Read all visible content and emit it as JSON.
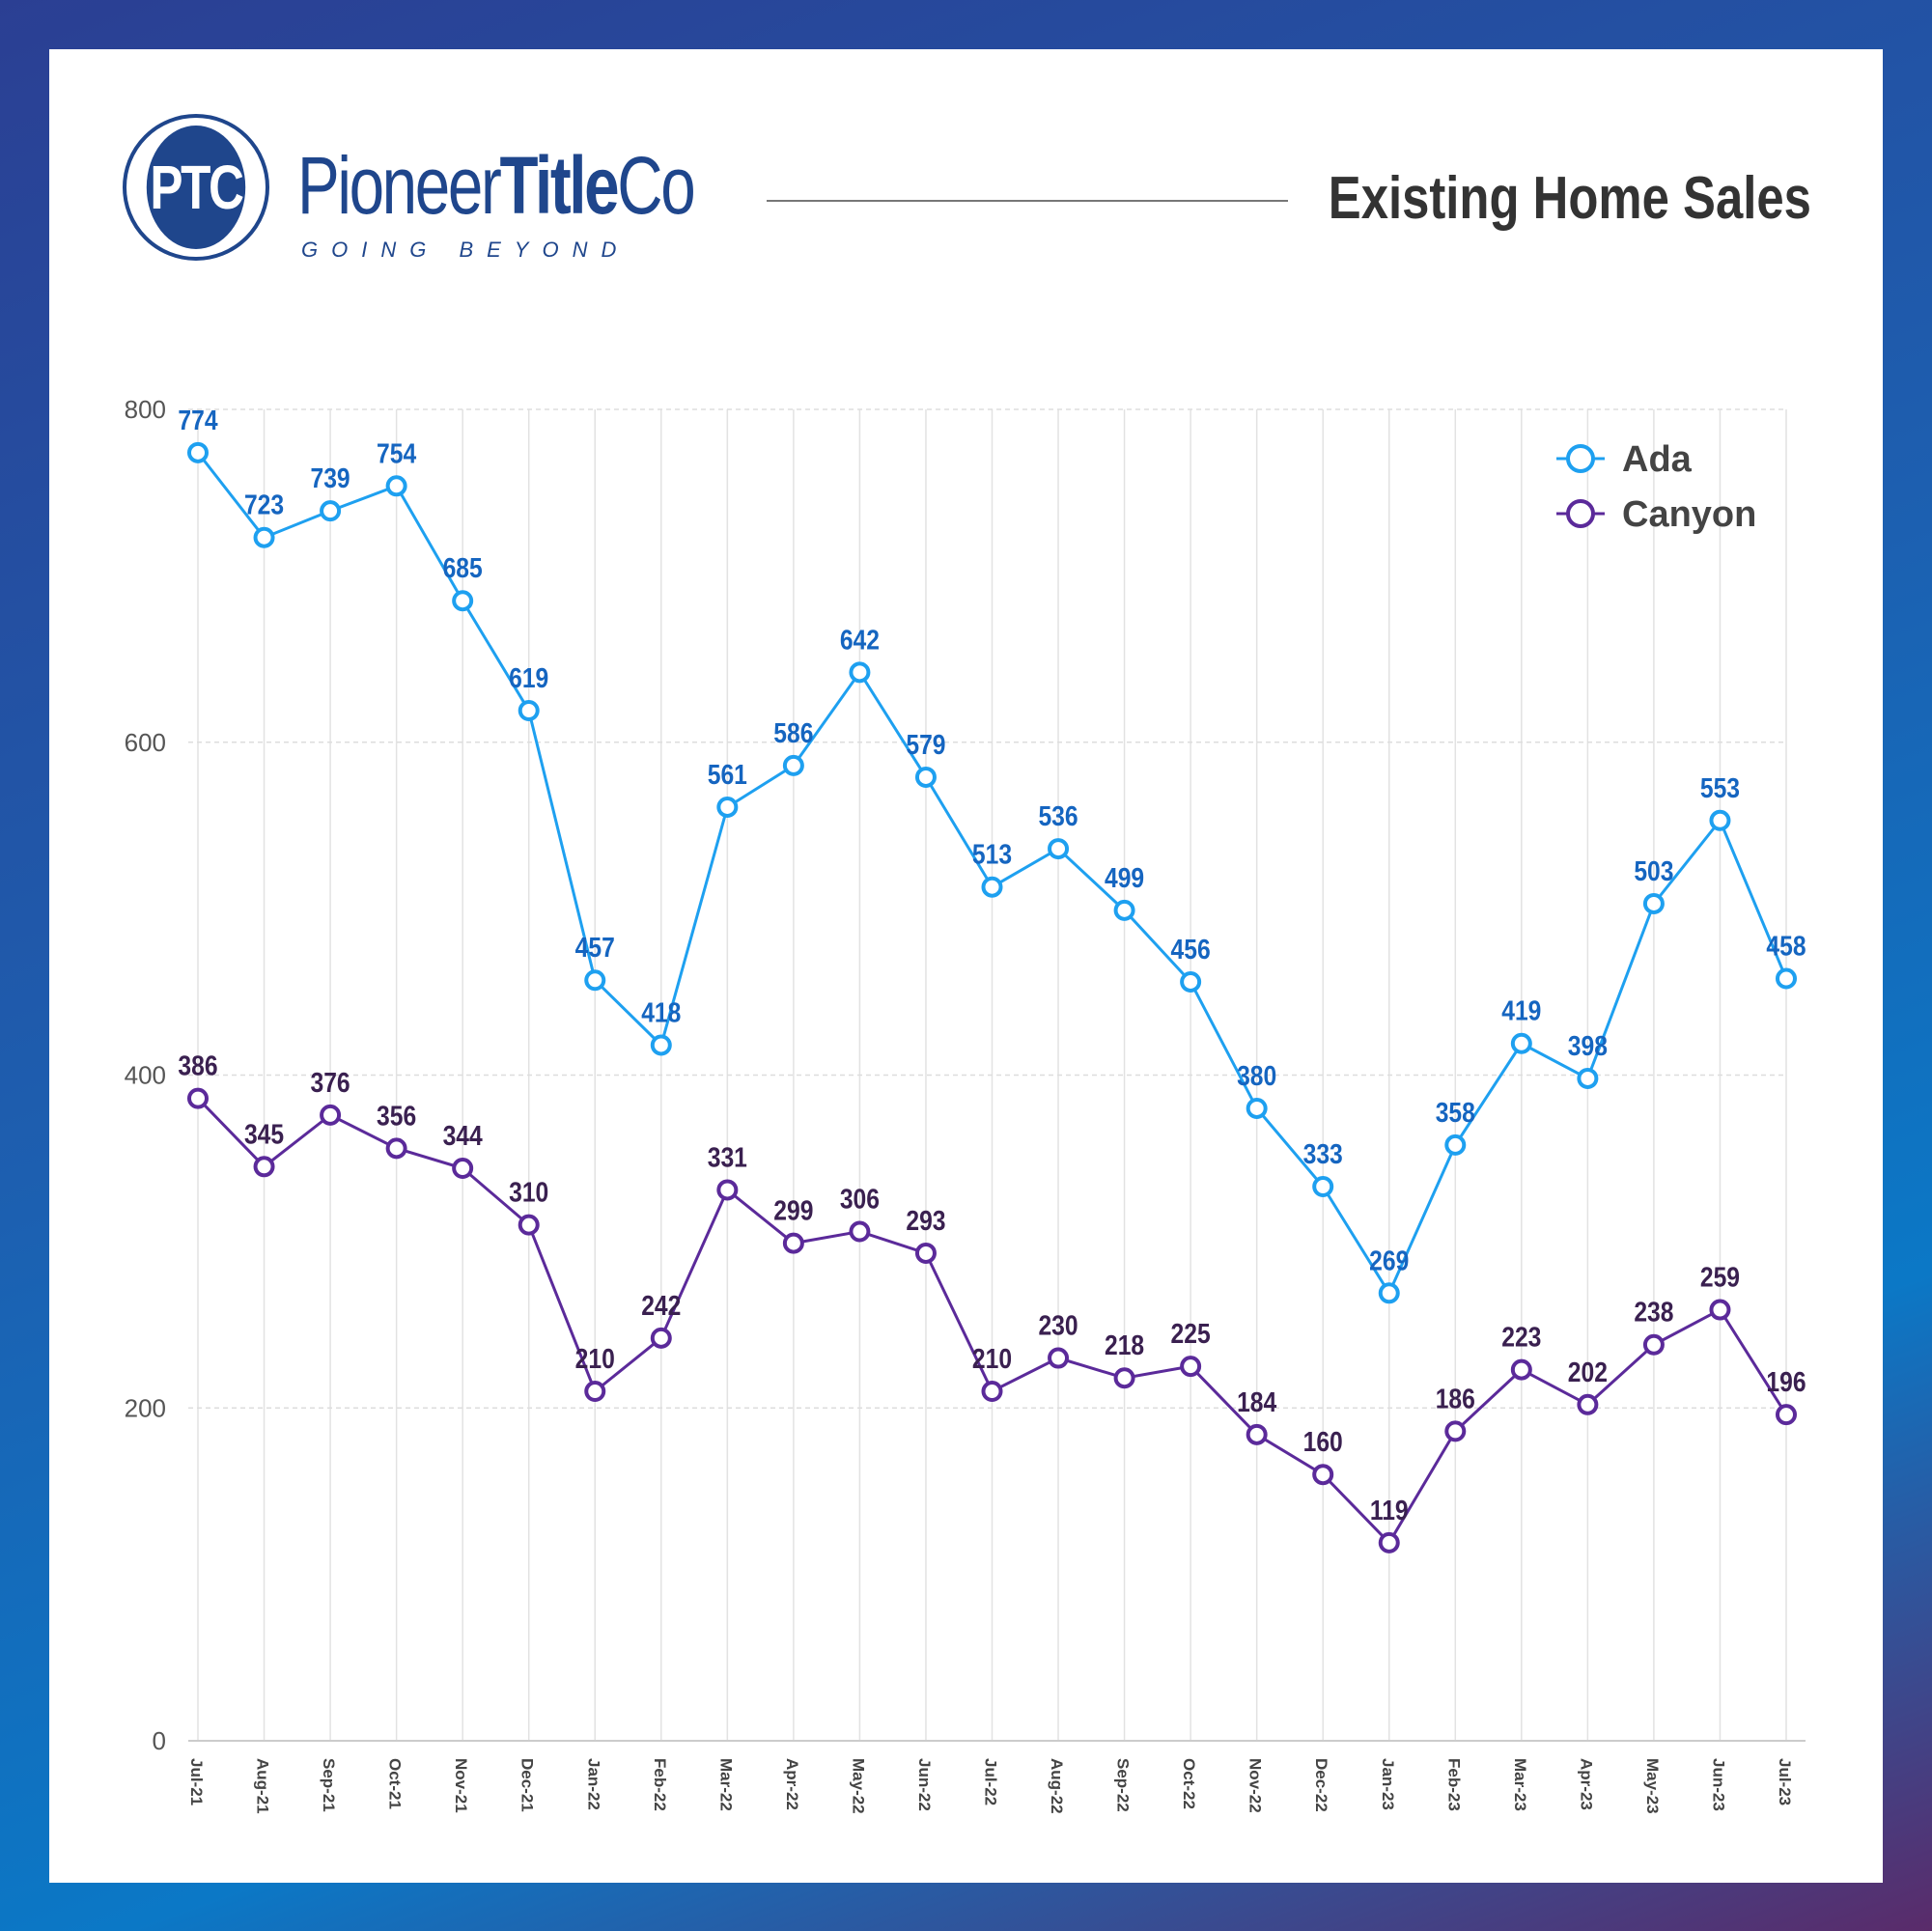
{
  "header": {
    "logo_text": "PTC",
    "brand_regular": "Pioneer",
    "brand_bold": "Title",
    "brand_end": "Co",
    "tagline": "GOING BEYOND",
    "title": "Existing Home Sales"
  },
  "colors": {
    "ada": "#1ea0f0",
    "ada_label": "#1565c0",
    "canyon": "#5b2a9a",
    "canyon_label": "#3a2050"
  },
  "chart_data": {
    "type": "line",
    "title": "Existing Home Sales",
    "xlabel": "",
    "ylabel": "",
    "ylim": [
      0,
      800
    ],
    "yticks": [
      0,
      200,
      400,
      600,
      800
    ],
    "grid": true,
    "legend_placement": "top-right",
    "categories": [
      "Jul-21",
      "Aug-21",
      "Sep-21",
      "Oct-21",
      "Nov-21",
      "Dec-21",
      "Jan-22",
      "Feb-22",
      "Mar-22",
      "Apr-22",
      "May-22",
      "Jun-22",
      "Jul-22",
      "Aug-22",
      "Sep-22",
      "Oct-22",
      "Nov-22",
      "Dec-22",
      "Jan-23",
      "Feb-23",
      "Mar-23",
      "Apr-23",
      "May-23",
      "Jun-23",
      "Jul-23"
    ],
    "series": [
      {
        "name": "Ada",
        "values": [
          774,
          723,
          739,
          754,
          685,
          619,
          457,
          418,
          561,
          586,
          642,
          579,
          513,
          536,
          499,
          456,
          380,
          333,
          269,
          358,
          419,
          398,
          503,
          553,
          458
        ]
      },
      {
        "name": "Canyon",
        "values": [
          386,
          345,
          376,
          356,
          344,
          310,
          210,
          242,
          331,
          299,
          306,
          293,
          210,
          230,
          218,
          225,
          184,
          160,
          119,
          186,
          223,
          202,
          238,
          259,
          196
        ]
      }
    ]
  }
}
